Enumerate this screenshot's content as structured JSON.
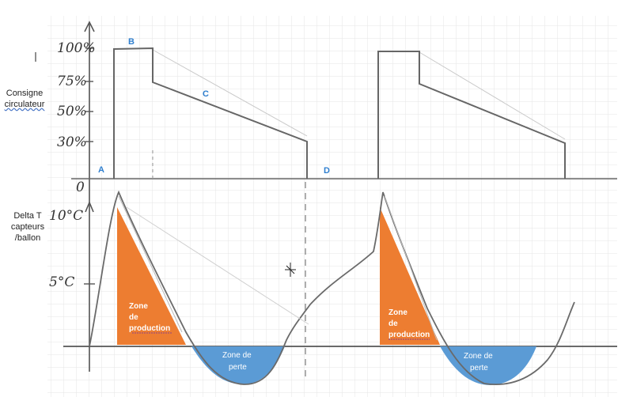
{
  "labels": {
    "consigne_line1": "Consigne",
    "consigne_line2": "circulateur",
    "delta_line1": "Delta T",
    "delta_line2": "capteurs",
    "delta_line3": "/ballon"
  },
  "top_axis": {
    "ticks": [
      "100%",
      "75%",
      "50%",
      "30%"
    ],
    "zero": "0"
  },
  "bottom_axis": {
    "ticks": [
      "10°C",
      "5°C"
    ]
  },
  "points": {
    "A": "A",
    "B": "B",
    "C": "C",
    "D": "D"
  },
  "zones": {
    "production_1": [
      "Zone",
      "de",
      "production"
    ],
    "perte_1": [
      "Zone de",
      "perte"
    ],
    "production_2": [
      "Zone",
      "de",
      "production"
    ],
    "perte_2": [
      "Zone de",
      "perte"
    ]
  },
  "colors": {
    "production": "#ed7d31",
    "perte": "#5b9bd5",
    "letters": "#2f7fcf",
    "pencil": "#5a5a5a"
  }
}
